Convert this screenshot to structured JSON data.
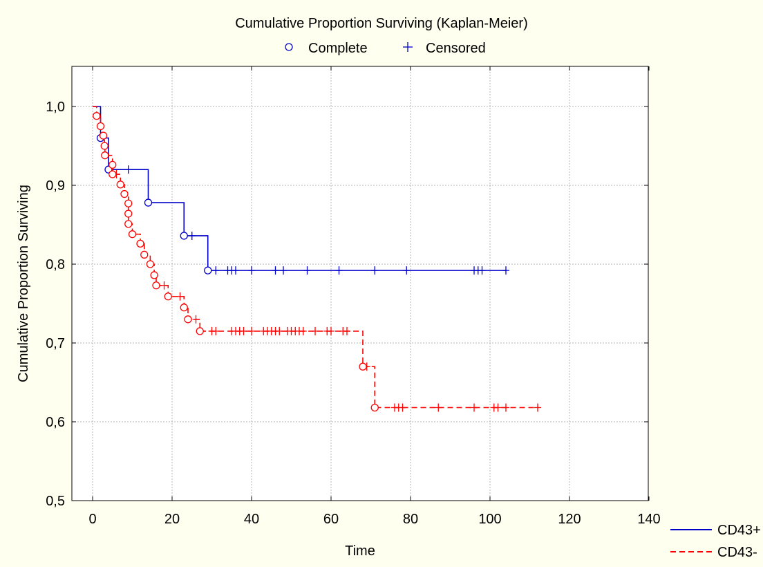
{
  "chart_data": {
    "type": "line",
    "subtype": "kaplan-meier step",
    "title": "Cumulative Proportion Surviving (Kaplan-Meier)",
    "xlabel": "Time",
    "ylabel": "Cumulative Proportion Surviving",
    "xlim": [
      -5,
      140
    ],
    "ylim": [
      0.5,
      1.05
    ],
    "xticks": [
      0,
      20,
      40,
      60,
      80,
      100,
      120,
      140
    ],
    "xtick_labels": [
      "0",
      "20",
      "40",
      "60",
      "80",
      "100",
      "120",
      "140"
    ],
    "yticks": [
      0.5,
      0.6,
      0.7,
      0.8,
      0.9,
      1.0
    ],
    "ytick_labels": [
      "0,5",
      "0,6",
      "0,7",
      "0,8",
      "0,9",
      "1,0"
    ],
    "grid": true,
    "marker_legend": {
      "placement": "top-center",
      "complete_label": "Complete",
      "censored_label": "Censored"
    },
    "series_legend": {
      "placement": "bottom-right"
    },
    "series": [
      {
        "name": "CD43+",
        "color": "#0000cc",
        "line_style": "solid",
        "steps": [
          [
            0,
            1.0
          ],
          [
            2,
            0.96
          ],
          [
            4,
            0.92
          ],
          [
            14,
            0.878
          ],
          [
            23,
            0.836
          ],
          [
            29,
            0.792
          ],
          [
            104,
            0.792
          ]
        ],
        "complete": [
          [
            2,
            0.96
          ],
          [
            4,
            0.92
          ],
          [
            14,
            0.878
          ],
          [
            23,
            0.836
          ],
          [
            29,
            0.792
          ]
        ],
        "censored": [
          [
            9,
            0.92
          ],
          [
            25,
            0.836
          ],
          [
            31,
            0.792
          ],
          [
            34,
            0.792
          ],
          [
            35,
            0.792
          ],
          [
            36,
            0.792
          ],
          [
            40,
            0.792
          ],
          [
            46,
            0.792
          ],
          [
            48,
            0.792
          ],
          [
            54,
            0.792
          ],
          [
            62,
            0.792
          ],
          [
            71,
            0.792
          ],
          [
            79,
            0.792
          ],
          [
            96,
            0.792
          ],
          [
            97,
            0.792
          ],
          [
            98,
            0.792
          ],
          [
            104,
            0.792
          ]
        ]
      },
      {
        "name": "CD43-",
        "color": "#ff0000",
        "line_style": "dashed",
        "steps": [
          [
            0,
            1.0
          ],
          [
            1,
            0.988
          ],
          [
            2,
            0.975
          ],
          [
            2.7,
            0.963
          ],
          [
            3,
            0.95
          ],
          [
            3.1,
            0.938
          ],
          [
            5,
            0.926
          ],
          [
            5,
            0.914
          ],
          [
            7,
            0.901
          ],
          [
            8,
            0.889
          ],
          [
            9,
            0.877
          ],
          [
            9,
            0.864
          ],
          [
            9,
            0.851
          ],
          [
            10,
            0.838
          ],
          [
            12,
            0.826
          ],
          [
            13,
            0.812
          ],
          [
            14.5,
            0.8
          ],
          [
            15.5,
            0.786
          ],
          [
            16,
            0.773
          ],
          [
            19,
            0.759
          ],
          [
            23,
            0.745
          ],
          [
            24,
            0.73
          ],
          [
            27,
            0.715
          ],
          [
            68,
            0.67
          ],
          [
            71,
            0.618
          ],
          [
            112,
            0.618
          ]
        ],
        "complete": [
          [
            1,
            0.988
          ],
          [
            2,
            0.975
          ],
          [
            2.7,
            0.963
          ],
          [
            3,
            0.95
          ],
          [
            3.1,
            0.938
          ],
          [
            5,
            0.926
          ],
          [
            5,
            0.914
          ],
          [
            7,
            0.901
          ],
          [
            8,
            0.889
          ],
          [
            9,
            0.877
          ],
          [
            9,
            0.864
          ],
          [
            9,
            0.851
          ],
          [
            10,
            0.838
          ],
          [
            12,
            0.826
          ],
          [
            13,
            0.812
          ],
          [
            14.5,
            0.8
          ],
          [
            15.5,
            0.786
          ],
          [
            16,
            0.773
          ],
          [
            19,
            0.759
          ],
          [
            23,
            0.745
          ],
          [
            24,
            0.73
          ],
          [
            27,
            0.715
          ],
          [
            68,
            0.67
          ],
          [
            71,
            0.618
          ]
        ],
        "censored": [
          [
            6,
            0.914
          ],
          [
            18,
            0.773
          ],
          [
            22,
            0.759
          ],
          [
            26,
            0.73
          ],
          [
            30,
            0.715
          ],
          [
            31,
            0.715
          ],
          [
            35,
            0.715
          ],
          [
            36,
            0.715
          ],
          [
            37,
            0.715
          ],
          [
            38,
            0.715
          ],
          [
            40,
            0.715
          ],
          [
            43,
            0.715
          ],
          [
            44,
            0.715
          ],
          [
            45,
            0.715
          ],
          [
            46,
            0.715
          ],
          [
            47,
            0.715
          ],
          [
            49,
            0.715
          ],
          [
            50,
            0.715
          ],
          [
            51,
            0.715
          ],
          [
            52,
            0.715
          ],
          [
            53,
            0.715
          ],
          [
            56,
            0.715
          ],
          [
            59,
            0.715
          ],
          [
            60,
            0.715
          ],
          [
            63,
            0.715
          ],
          [
            64,
            0.715
          ],
          [
            69,
            0.67
          ],
          [
            76,
            0.618
          ],
          [
            77,
            0.618
          ],
          [
            78,
            0.618
          ],
          [
            87,
            0.618
          ],
          [
            96,
            0.618
          ],
          [
            101,
            0.618
          ],
          [
            102,
            0.618
          ],
          [
            104,
            0.618
          ],
          [
            112,
            0.618
          ]
        ]
      }
    ]
  }
}
